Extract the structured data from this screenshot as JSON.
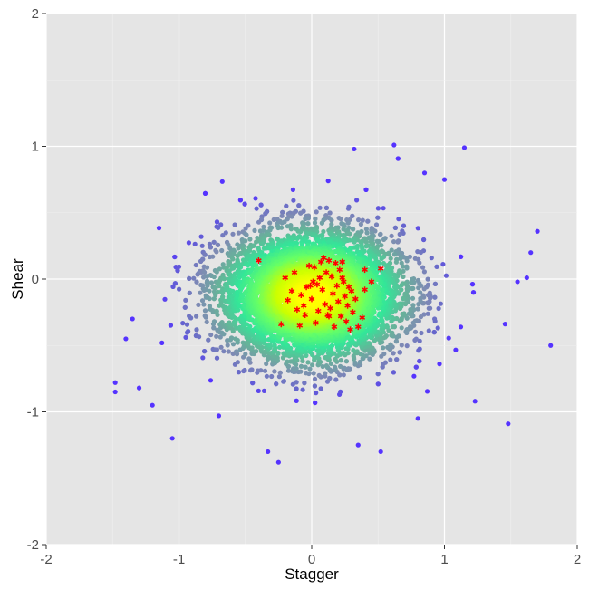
{
  "chart_data": {
    "type": "scatter",
    "title": "",
    "xlabel": "Stagger",
    "ylabel": "Shear",
    "xlim": [
      -2,
      2
    ],
    "ylim": [
      -2,
      2
    ],
    "xticks": [
      "-2",
      "-1",
      "0",
      "1",
      "2"
    ],
    "yticks": [
      "-2",
      "-1",
      "0",
      "1",
      "2"
    ],
    "grid": true,
    "legend": "none",
    "background_color": "#e5e5e5",
    "grid_major_color": "#ffffff",
    "grid_minor_color": "#f0f0f0",
    "color_scale": {
      "description": "points colored by density: yellow at center to blue at outliers",
      "stops": [
        "#ffff00",
        "#ccff00",
        "#66ff66",
        "#33e699",
        "#66b399",
        "#7f8cb3",
        "#6666cc",
        "#5533ff"
      ]
    },
    "series": [
      {
        "marker": "dot",
        "distribution": {
          "count": 8000,
          "center": [
            0.0,
            -0.12
          ],
          "std": [
            0.34,
            0.24
          ]
        },
        "outliers": [
          [
            -1.48,
            -0.78
          ],
          [
            -1.48,
            -0.85
          ],
          [
            -1.05,
            -1.2
          ],
          [
            -1.3,
            -0.82
          ],
          [
            -1.2,
            -0.95
          ],
          [
            0.62,
            1.01
          ],
          [
            1.15,
            0.99
          ],
          [
            0.32,
            0.98
          ],
          [
            1.48,
            -1.09
          ],
          [
            1.55,
            -0.02
          ],
          [
            1.62,
            0.01
          ],
          [
            1.7,
            0.36
          ],
          [
            1.65,
            0.2
          ],
          [
            1.8,
            -0.5
          ],
          [
            -0.33,
            -1.3
          ],
          [
            -0.25,
            -1.38
          ],
          [
            0.52,
            -1.3
          ],
          [
            1.23,
            -0.92
          ],
          [
            0.35,
            -1.25
          ],
          [
            0.8,
            -1.05
          ],
          [
            -0.7,
            -1.03
          ],
          [
            1.0,
            0.75
          ],
          [
            0.85,
            0.8
          ],
          [
            -1.35,
            -0.3
          ],
          [
            -1.4,
            -0.45
          ]
        ]
      },
      {
        "marker": "asterisk",
        "color": "#ff0000",
        "points": [
          [
            -0.4,
            0.14
          ],
          [
            -0.23,
            -0.34
          ],
          [
            -0.2,
            0.01
          ],
          [
            -0.18,
            -0.16
          ],
          [
            -0.15,
            -0.09
          ],
          [
            -0.13,
            0.05
          ],
          [
            -0.11,
            -0.23
          ],
          [
            -0.09,
            -0.35
          ],
          [
            -0.08,
            -0.12
          ],
          [
            -0.06,
            -0.2
          ],
          [
            -0.05,
            -0.27
          ],
          [
            -0.04,
            -0.06
          ],
          [
            -0.02,
            0.1
          ],
          [
            -0.01,
            -0.05
          ],
          [
            0.0,
            -0.15
          ],
          [
            0.01,
            -0.02
          ],
          [
            0.02,
            0.09
          ],
          [
            0.03,
            -0.33
          ],
          [
            0.04,
            -0.04
          ],
          [
            0.05,
            -0.24
          ],
          [
            0.06,
            0.01
          ],
          [
            0.07,
            0.13
          ],
          [
            0.08,
            -0.08
          ],
          [
            0.09,
            0.16
          ],
          [
            0.1,
            -0.19
          ],
          [
            0.11,
            0.05
          ],
          [
            0.12,
            -0.27
          ],
          [
            0.13,
            0.14
          ],
          [
            0.14,
            -0.22
          ],
          [
            0.15,
            0.02
          ],
          [
            0.16,
            -0.11
          ],
          [
            0.17,
            -0.36
          ],
          [
            0.18,
            0.12
          ],
          [
            0.19,
            -0.05
          ],
          [
            0.2,
            -0.17
          ],
          [
            0.21,
            0.07
          ],
          [
            0.22,
            -0.28
          ],
          [
            0.23,
            0.13
          ],
          [
            0.24,
            -0.02
          ],
          [
            0.25,
            -0.13
          ],
          [
            0.26,
            -0.32
          ],
          [
            0.27,
            -0.2
          ],
          [
            0.28,
            -0.06
          ],
          [
            0.29,
            -0.38
          ],
          [
            0.3,
            -0.09
          ],
          [
            0.31,
            -0.25
          ],
          [
            0.33,
            -0.15
          ],
          [
            0.35,
            -0.36
          ],
          [
            0.38,
            -0.29
          ],
          [
            0.4,
            -0.08
          ],
          [
            0.4,
            0.07
          ],
          [
            0.45,
            -0.02
          ],
          [
            0.52,
            0.08
          ],
          [
            0.13,
            -0.28
          ],
          [
            0.23,
            0.01
          ]
        ]
      }
    ]
  }
}
